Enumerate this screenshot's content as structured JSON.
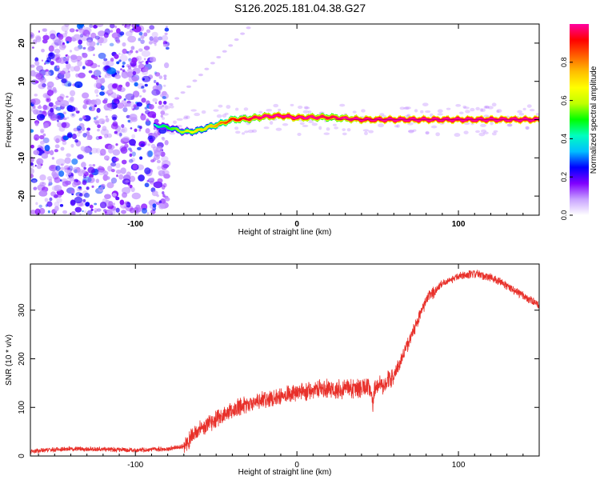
{
  "title": "S126.2025.181.04.38.G27",
  "chart_data": [
    {
      "type": "heatmap",
      "title": "S126.2025.181.04.38.G27",
      "xlabel": "Height of straight line (km)",
      "ylabel": "Frequency (Hz)",
      "xlim": [
        -165,
        150
      ],
      "ylim": [
        -25,
        25
      ],
      "x_ticks": [
        -100,
        0,
        100
      ],
      "y_ticks": [
        -20,
        -10,
        0,
        10,
        20
      ],
      "colorbar": {
        "label": "Normalized spectral amplitude",
        "range": [
          0,
          1
        ],
        "ticks": [
          0.0,
          0.2,
          0.4,
          0.6,
          0.8
        ],
        "colormap": [
          "#ffffff",
          "#c8a2ff",
          "#8000ff",
          "#0000ff",
          "#00bfff",
          "#00ffbf",
          "#00ff00",
          "#bfff00",
          "#ffff00",
          "#ffbf00",
          "#ff6000",
          "#ff0000",
          "#ff00a0"
        ]
      },
      "ridge": {
        "x": [
          -88,
          -80,
          -70,
          -62,
          -55,
          -48,
          -40,
          -30,
          -20,
          -10,
          0,
          10,
          20,
          40,
          60,
          80,
          100,
          120,
          150
        ],
        "y": [
          -1.5,
          -2,
          -3.2,
          -3,
          -2,
          -1.2,
          0,
          0.2,
          0.8,
          1,
          0.5,
          0.6,
          0.6,
          0,
          0,
          0,
          0,
          0,
          0
        ],
        "amplitude": [
          0.3,
          0.4,
          0.5,
          0.6,
          0.6,
          0.7,
          0.8,
          0.85,
          0.9,
          0.95,
          0.95,
          0.9,
          0.85,
          0.95,
          1,
          1,
          1,
          1,
          1
        ]
      },
      "noise_region_x": [
        -165,
        -80
      ]
    },
    {
      "type": "line",
      "xlabel": "Height of straight line (km)",
      "ylabel": "SNR (10 * v/v)",
      "xlim": [
        -165,
        150
      ],
      "ylim": [
        0,
        395
      ],
      "x_ticks": [
        -100,
        0,
        100
      ],
      "y_ticks": [
        0,
        100,
        200,
        300
      ],
      "color": "#e8302a",
      "series": [
        {
          "x": [
            -165,
            -140,
            -120,
            -100,
            -80,
            -70,
            -65,
            -60,
            -50,
            -40,
            -30,
            -20,
            -10,
            0,
            10,
            20,
            30,
            40,
            45,
            47,
            48,
            50,
            55,
            60,
            70,
            80,
            90,
            100,
            110,
            120,
            130,
            140,
            150
          ],
          "y": [
            10,
            15,
            14,
            12,
            14,
            20,
            40,
            55,
            75,
            95,
            105,
            115,
            125,
            130,
            135,
            138,
            140,
            140,
            141,
            100,
            140,
            145,
            150,
            165,
            240,
            320,
            355,
            370,
            375,
            368,
            350,
            330,
            310
          ]
        }
      ]
    }
  ]
}
